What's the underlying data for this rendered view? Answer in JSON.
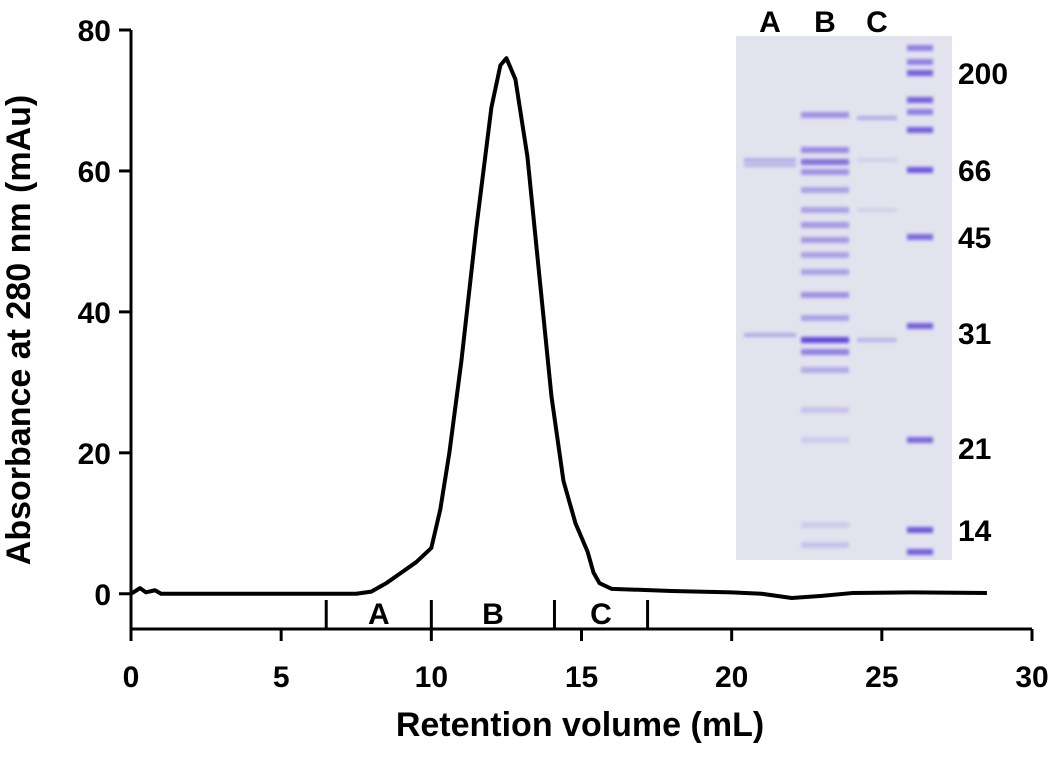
{
  "chart_data": {
    "type": "line",
    "x_label": "Retention volume (mL)",
    "y_label": "Absorbance at 280 nm (mAu)",
    "series": [
      {
        "color": "#000000",
        "x": [
          0,
          0.3,
          0.5,
          0.8,
          1,
          3,
          5,
          7.5,
          8,
          8.5,
          9,
          9.5,
          10,
          10.3,
          10.6,
          11,
          11.5,
          12,
          12.3,
          12.5,
          12.8,
          13.2,
          13.6,
          14,
          14.4,
          14.8,
          15.2,
          15.4,
          15.6,
          16,
          18,
          20,
          21,
          22,
          23,
          24,
          26,
          28.5
        ],
        "values": [
          0,
          0.8,
          0.2,
          0.5,
          0,
          0,
          0,
          0,
          0.3,
          1.5,
          3,
          4.5,
          6.5,
          12,
          20,
          33,
          52,
          69,
          75,
          76,
          73,
          62,
          45,
          28,
          16,
          10,
          6,
          3,
          1.5,
          0.7,
          0.4,
          0.2,
          0,
          -0.6,
          -0.3,
          0.1,
          0.2,
          0.1
        ]
      }
    ],
    "xlim": [
      0,
      30
    ],
    "xticks": [
      0,
      5,
      10,
      15,
      20,
      25,
      30
    ],
    "ylim": [
      -5,
      80
    ],
    "yticks": [
      0,
      20,
      40,
      60,
      80
    ],
    "fraction_bounds": [
      6.5,
      10,
      14.1,
      17.2
    ],
    "fraction_labels": [
      "A",
      "B",
      "C"
    ],
    "inset": {
      "lanes": [
        "A",
        "B",
        "C"
      ],
      "markers": [
        "200",
        "66",
        "45",
        "31",
        "21",
        "14"
      ]
    }
  }
}
